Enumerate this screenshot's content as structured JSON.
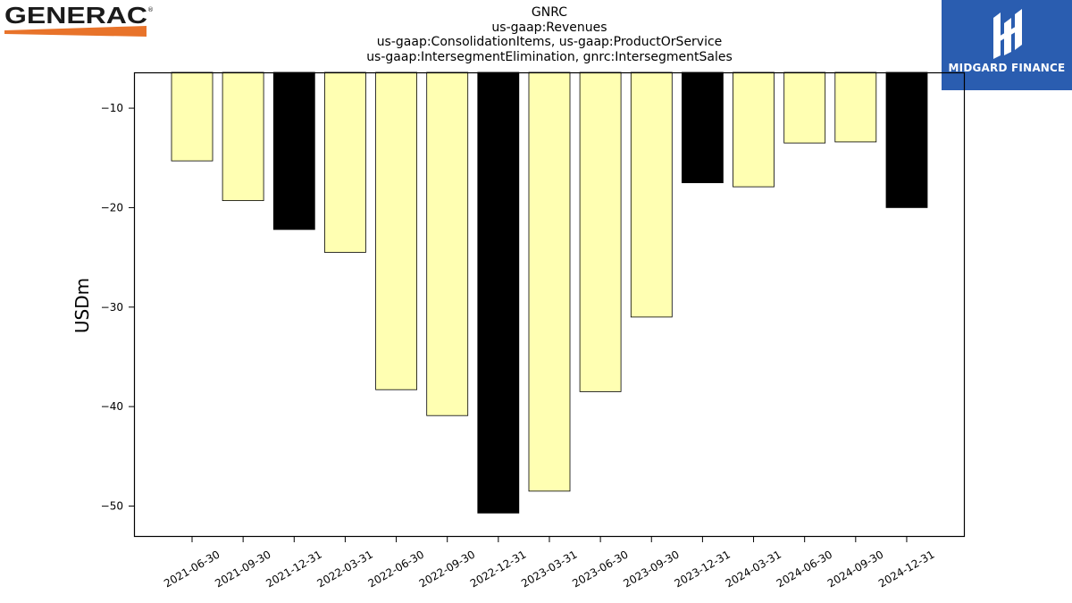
{
  "header": {
    "title_lines": [
      "GNRC",
      "us-gaap:Revenues",
      "us-gaap:ConsolidationItems, us-gaap:ProductOrService",
      "us-gaap:IntersegmentElimination, gnrc:IntersegmentSales"
    ]
  },
  "logos": {
    "left_brand": "GENERAC",
    "right_brand": "MIDGARD FINANCE",
    "right_brand_color": "#2a5db0",
    "left_brand_accent": "#e8732a"
  },
  "chart_data": {
    "type": "bar",
    "title": "GNRC us-gaap:Revenues us-gaap:ConsolidationItems, us-gaap:ProductOrService us-gaap:IntersegmentElimination, gnrc:IntersegmentSales",
    "xlabel": "",
    "ylabel": "USDm",
    "ylim": [
      -53.1,
      -6.4
    ],
    "yticks": [
      -10,
      -20,
      -30,
      -40,
      -50
    ],
    "ytick_labels": [
      "−10",
      "−20",
      "−30",
      "−40",
      "−50"
    ],
    "grid": false,
    "categories": [
      "2021-06-30",
      "2021-09-30",
      "2021-12-31",
      "2022-03-31",
      "2022-06-30",
      "2022-09-30",
      "2022-12-31",
      "2023-03-31",
      "2023-06-30",
      "2023-09-30",
      "2023-12-31",
      "2024-03-31",
      "2024-06-30",
      "2024-09-30",
      "2024-12-31"
    ],
    "values": [
      -15.3,
      -19.3,
      -22.2,
      -24.5,
      -38.3,
      -40.9,
      -50.7,
      -48.5,
      -38.5,
      -31.0,
      -17.5,
      -17.9,
      -13.5,
      -13.4,
      -20.0
    ],
    "bar_colors": [
      "#ffffb2",
      "#ffffb2",
      "#000000",
      "#ffffb2",
      "#ffffb2",
      "#ffffb2",
      "#000000",
      "#ffffb2",
      "#ffffb2",
      "#ffffb2",
      "#000000",
      "#ffffb2",
      "#ffffb2",
      "#ffffb2",
      "#000000"
    ]
  }
}
